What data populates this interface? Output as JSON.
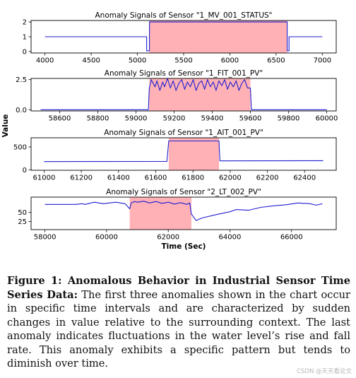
{
  "chart_data": [
    {
      "type": "line",
      "title": "Anomaly Signals of Sensor \"1_MV_001_STATUS\"",
      "xlim": [
        3850,
        7150
      ],
      "ylim": [
        -0.1,
        2.1
      ],
      "xticks": [
        4000,
        4500,
        5000,
        5500,
        6000,
        6500,
        7000
      ],
      "xticklabels": [
        "4000",
        "4500",
        "5000",
        "5500",
        "6000",
        "6500",
        "7000"
      ],
      "yticks": [
        0,
        1,
        2
      ],
      "yticklabels": [
        "0",
        "1",
        "2"
      ],
      "anomaly_region": [
        5130,
        6620
      ],
      "series": [
        {
          "x": [
            4000,
            5100,
            5100,
            5130,
            5130,
            6620,
            6620,
            6640,
            6640,
            7000
          ],
          "y": [
            1,
            1,
            0.05,
            0.05,
            2,
            2,
            0.05,
            0.05,
            1,
            1
          ]
        }
      ]
    },
    {
      "type": "line",
      "title": "Anomaly Signals of Sensor \"1_FIT_001_PV\"",
      "xlim": [
        58450,
        60050
      ],
      "ylim": [
        -0.1,
        2.6
      ],
      "xticks": [
        58600,
        58800,
        59000,
        59200,
        59400,
        59600,
        59800,
        60000
      ],
      "xticklabels": [
        "58600",
        "58800",
        "59000",
        "59200",
        "59400",
        "59600",
        "59800",
        "60000"
      ],
      "yticks": [
        0,
        2.5
      ],
      "yticklabels": [
        "0.0",
        "2.5"
      ],
      "anomaly_region": [
        59070,
        59600
      ],
      "series": [
        {
          "x": [
            58500,
            59065,
            59070,
            59080,
            59100,
            59110,
            59125,
            59140,
            59150,
            59165,
            59180,
            59195,
            59210,
            59225,
            59240,
            59255,
            59270,
            59285,
            59300,
            59315,
            59330,
            59345,
            59360,
            59375,
            59390,
            59405,
            59420,
            59435,
            59450,
            59465,
            59480,
            59495,
            59510,
            59525,
            59540,
            59555,
            59570,
            59585,
            59595,
            59600,
            59605,
            60000
          ],
          "y": [
            0,
            0,
            1.8,
            2.5,
            1.9,
            2.4,
            1.6,
            2.3,
            1.9,
            2.6,
            1.8,
            2.4,
            1.6,
            2.2,
            2.5,
            1.7,
            2.3,
            1.9,
            2.5,
            1.6,
            2.2,
            2.4,
            1.7,
            2.5,
            1.9,
            2.3,
            1.6,
            2.4,
            2.0,
            2.5,
            1.7,
            2.3,
            1.9,
            2.4,
            1.6,
            2.2,
            2.5,
            1.8,
            1.8,
            1.8,
            0,
            0
          ]
        }
      ]
    },
    {
      "type": "line",
      "title": "Anomaly Signals of Sensor \"1_AIT_001_PV\"",
      "xlim": [
        60930,
        62570
      ],
      "ylim": [
        -10,
        700
      ],
      "xticks": [
        61000,
        61200,
        61400,
        61600,
        61800,
        62000,
        62200,
        62400
      ],
      "xticklabels": [
        "61000",
        "61200",
        "61400",
        "61600",
        "61800",
        "62000",
        "62200",
        "62400"
      ],
      "yticks": [
        0,
        500
      ],
      "yticklabels": [
        "0",
        "500"
      ],
      "anomaly_region": [
        61670,
        61940
      ],
      "series": [
        {
          "x": [
            61000,
            61660,
            61670,
            61940,
            61945,
            62500
          ],
          "y": [
            180,
            185,
            630,
            630,
            195,
            200
          ]
        }
      ]
    },
    {
      "type": "line",
      "title": "Anomaly Signals of Sensor \"2_LT_002_PV\"",
      "xlim": [
        57550,
        67450
      ],
      "ylim": [
        3,
        92
      ],
      "xticks": [
        58000,
        60000,
        62000,
        64000,
        66000
      ],
      "xticklabels": [
        "58000",
        "60000",
        "62000",
        "64000",
        "66000"
      ],
      "yticks": [
        25,
        50
      ],
      "yticklabels": [
        "25",
        "50"
      ],
      "xlabel": "Time (Sec)",
      "ylabel": "Value",
      "anomaly_region": [
        60750,
        62750
      ],
      "series": [
        {
          "x": [
            58000,
            59000,
            59200,
            59300,
            59600,
            59900,
            60300,
            60600,
            60750,
            60800,
            60900,
            61000,
            61200,
            61400,
            61600,
            61800,
            62000,
            62200,
            62400,
            62600,
            62700,
            62750,
            62900,
            63100,
            63500,
            64000,
            64200,
            64600,
            65000,
            65500,
            65800,
            66200,
            66600,
            66800,
            67000
          ],
          "y": [
            72,
            72,
            74,
            72,
            78,
            74,
            78,
            74,
            60,
            76,
            80,
            78,
            81,
            76,
            80,
            75,
            78,
            73,
            77,
            72,
            76,
            46,
            28,
            35,
            43,
            52,
            58,
            56,
            64,
            69,
            71,
            76,
            74,
            70,
            74
          ]
        }
      ]
    }
  ],
  "caption": {
    "label": "Figure 1: Anomalous Behavior in Industrial Sensor Time Series Data:",
    "text": " The first three anomalies shown in the chart occur in specific time intervals and are characterized by sudden changes in value relative to the surrounding context. The last anomaly indicates fluctuations in the water level’s rise and fall rate. This anomaly exhibits a specific pattern but tends to diminish over time."
  },
  "watermark": "CSDN @天天看论文",
  "colors": {
    "line": "#1f1fd1",
    "anomaly": "#ffb1b6"
  }
}
